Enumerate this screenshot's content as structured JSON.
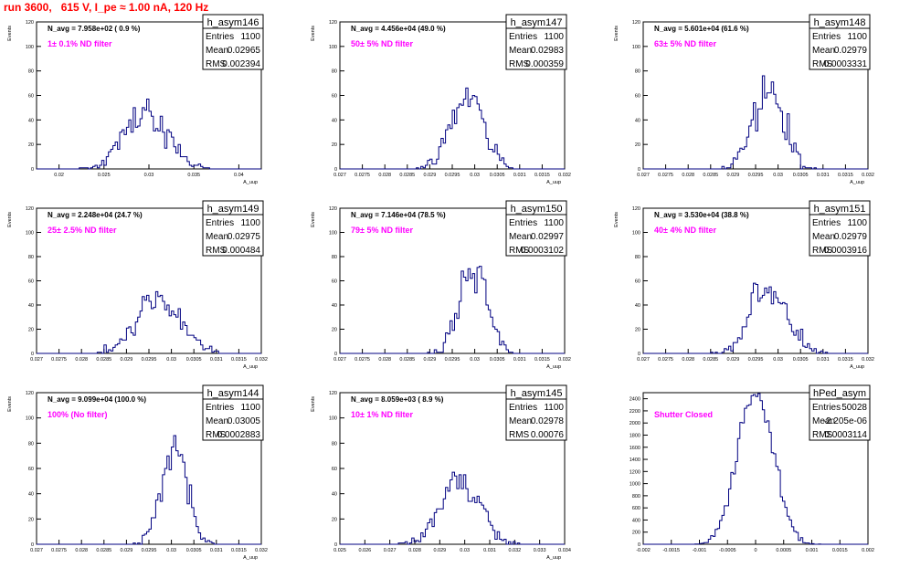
{
  "page": {
    "title": "run 3600,   615 V, I_pe ≈ 1.00 nA, 120 Hz"
  },
  "colors": {
    "histogram": "#000080",
    "annotation": "#ff00ff",
    "title": "#ff0000"
  },
  "chart_data": [
    {
      "type": "histogram",
      "name": "h_asym146",
      "header": "N_avg = 7.958e+02 ( 0.9 %)",
      "annotation": "1± 0.1% ND filter",
      "stats": {
        "Entries": "1100",
        "Mean": "0.02965",
        "RMS": "0.002394"
      },
      "ylabel": "Events",
      "xlabel": "A_uup",
      "xlim": [
        0.0175,
        0.0425
      ],
      "ylim": [
        0,
        120
      ],
      "xticks": [
        0.02,
        0.025,
        0.03,
        0.035,
        0.04
      ],
      "xtick_labels": [
        "0.02",
        "0.025",
        "0.03",
        "0.035",
        "0.04"
      ],
      "yticks": [
        0,
        20,
        40,
        60,
        80,
        100,
        120
      ],
      "mean": 0.02965,
      "rms": 0.002394,
      "entries": 1100
    },
    {
      "type": "histogram",
      "name": "h_asym147",
      "header": "N_avg = 4.456e+04 (49.0 %)",
      "annotation": "50± 5% ND filter",
      "stats": {
        "Entries": "1100",
        "Mean": "0.02983",
        "RMS": "0.000359"
      },
      "ylabel": "Events",
      "xlabel": "A_uup",
      "xlim": [
        0.027,
        0.032
      ],
      "ylim": [
        0,
        120
      ],
      "xticks": [
        0.027,
        0.0275,
        0.028,
        0.0285,
        0.029,
        0.0295,
        0.03,
        0.0305,
        0.031,
        0.0315,
        0.032
      ],
      "xtick_labels": [
        "0.027",
        "0.0275",
        "0.028",
        "0.0285",
        "0.029",
        "0.0295",
        "0.03",
        "0.0305",
        "0.031",
        "0.0315",
        "0.032"
      ],
      "yticks": [
        0,
        20,
        40,
        60,
        80,
        100,
        120
      ],
      "mean": 0.02983,
      "rms": 0.000359,
      "entries": 1100
    },
    {
      "type": "histogram",
      "name": "h_asym148",
      "header": "N_avg = 5.601e+04 (61.6 %)",
      "annotation": "63± 5% ND filter",
      "stats": {
        "Entries": "1100",
        "Mean": "0.02979",
        "RMS": "0.0003331"
      },
      "ylabel": "Events",
      "xlabel": "A_uup",
      "xlim": [
        0.027,
        0.032
      ],
      "ylim": [
        0,
        120
      ],
      "xticks": [
        0.027,
        0.0275,
        0.028,
        0.0285,
        0.029,
        0.0295,
        0.03,
        0.0305,
        0.031,
        0.0315,
        0.032
      ],
      "xtick_labels": [
        "0.027",
        "0.0275",
        "0.028",
        "0.0285",
        "0.029",
        "0.0295",
        "0.03",
        "0.0305",
        "0.031",
        "0.0315",
        "0.032"
      ],
      "yticks": [
        0,
        20,
        40,
        60,
        80,
        100,
        120
      ],
      "mean": 0.02979,
      "rms": 0.0003331,
      "entries": 1100
    },
    {
      "type": "histogram",
      "name": "h_asym149",
      "header": "N_avg = 2.248e+04 (24.7 %)",
      "annotation": "25± 2.5% ND filter",
      "stats": {
        "Entries": "1100",
        "Mean": "0.02975",
        "RMS": "0.000484"
      },
      "ylabel": "Events",
      "xlabel": "A_uup",
      "xlim": [
        0.027,
        0.032
      ],
      "ylim": [
        0,
        120
      ],
      "xticks": [
        0.027,
        0.0275,
        0.028,
        0.0285,
        0.029,
        0.0295,
        0.03,
        0.0305,
        0.031,
        0.0315,
        0.032
      ],
      "xtick_labels": [
        "0.027",
        "0.0275",
        "0.028",
        "0.0285",
        "0.029",
        "0.0295",
        "0.03",
        "0.0305",
        "0.031",
        "0.0315",
        "0.032"
      ],
      "yticks": [
        0,
        20,
        40,
        60,
        80,
        100,
        120
      ],
      "mean": 0.02975,
      "rms": 0.000484,
      "entries": 1100
    },
    {
      "type": "histogram",
      "name": "h_asym150",
      "header": "N_avg = 7.146e+04 (78.5 %)",
      "annotation": "79± 5% ND filter",
      "stats": {
        "Entries": "1100",
        "Mean": "0.02997",
        "RMS": "0.0003102"
      },
      "ylabel": "Events",
      "xlabel": "A_uup",
      "xlim": [
        0.027,
        0.032
      ],
      "ylim": [
        0,
        120
      ],
      "xticks": [
        0.027,
        0.0275,
        0.028,
        0.0285,
        0.029,
        0.0295,
        0.03,
        0.0305,
        0.031,
        0.0315,
        0.032
      ],
      "xtick_labels": [
        "0.027",
        "0.0275",
        "0.028",
        "0.0285",
        "0.029",
        "0.0295",
        "0.03",
        "0.0305",
        "0.031",
        "0.0315",
        "0.032"
      ],
      "yticks": [
        0,
        20,
        40,
        60,
        80,
        100,
        120
      ],
      "mean": 0.02997,
      "rms": 0.0003102,
      "entries": 1100
    },
    {
      "type": "histogram",
      "name": "h_asym151",
      "header": "N_avg = 3.530e+04 (38.8 %)",
      "annotation": "40± 4% ND filter",
      "stats": {
        "Entries": "1100",
        "Mean": "0.02979",
        "RMS": "0.0003916"
      },
      "ylabel": "Events",
      "xlabel": "A_uup",
      "xlim": [
        0.027,
        0.032
      ],
      "ylim": [
        0,
        120
      ],
      "xticks": [
        0.027,
        0.0275,
        0.028,
        0.0285,
        0.029,
        0.0295,
        0.03,
        0.0305,
        0.031,
        0.0315,
        0.032
      ],
      "xtick_labels": [
        "0.027",
        "0.0275",
        "0.028",
        "0.0285",
        "0.029",
        "0.0295",
        "0.03",
        "0.0305",
        "0.031",
        "0.0315",
        "0.032"
      ],
      "yticks": [
        0,
        20,
        40,
        60,
        80,
        100,
        120
      ],
      "mean": 0.02979,
      "rms": 0.0003916,
      "entries": 1100
    },
    {
      "type": "histogram",
      "name": "h_asym144",
      "header": "N_avg = 9.099e+04 (100.0 %)",
      "annotation": "100% (No filter)",
      "stats": {
        "Entries": "1100",
        "Mean": "0.03005",
        "RMS": "0.0002883"
      },
      "ylabel": "Events",
      "xlabel": "A_uup",
      "xlim": [
        0.027,
        0.032
      ],
      "ylim": [
        0,
        120
      ],
      "xticks": [
        0.027,
        0.0275,
        0.028,
        0.0285,
        0.029,
        0.0295,
        0.03,
        0.0305,
        0.031,
        0.0315,
        0.032
      ],
      "xtick_labels": [
        "0.027",
        "0.0275",
        "0.028",
        "0.0285",
        "0.029",
        "0.0295",
        "0.03",
        "0.0305",
        "0.031",
        "0.0315",
        "0.032"
      ],
      "yticks": [
        0,
        20,
        40,
        60,
        80,
        100,
        120
      ],
      "mean": 0.03005,
      "rms": 0.0002883,
      "entries": 1100
    },
    {
      "type": "histogram",
      "name": "h_asym145",
      "header": "N_avg = 8.059e+03 ( 8.9 %)",
      "annotation": "10± 1% ND filter",
      "stats": {
        "Entries": "1100",
        "Mean": "0.02978",
        "RMS": "0.00076"
      },
      "ylabel": "Events",
      "xlabel": "A_uup",
      "xlim": [
        0.025,
        0.034
      ],
      "ylim": [
        0,
        120
      ],
      "xticks": [
        0.025,
        0.026,
        0.027,
        0.028,
        0.029,
        0.03,
        0.031,
        0.032,
        0.033,
        0.034
      ],
      "xtick_labels": [
        "0.025",
        "0.026",
        "0.027",
        "0.028",
        "0.029",
        "0.03",
        "0.031",
        "0.032",
        "0.033",
        "0.034"
      ],
      "yticks": [
        0,
        20,
        40,
        60,
        80,
        100,
        120
      ],
      "mean": 0.02978,
      "rms": 0.00076,
      "entries": 1100
    },
    {
      "type": "histogram",
      "name": "hPed_asym",
      "header": "",
      "annotation": "Shutter Closed",
      "stats": {
        "Entries": "50028",
        "Mean": "-2.205e-06",
        "RMS": "0.0003114"
      },
      "ylabel": "",
      "xlabel": "",
      "xlim": [
        -0.002,
        0.002
      ],
      "ylim": [
        0,
        2500
      ],
      "xticks": [
        -0.002,
        -0.0015,
        -0.001,
        -0.0005,
        0,
        0.0005,
        0.001,
        0.0015,
        0.002
      ],
      "xtick_labels": [
        "-0.002",
        "-0.0015",
        "-0.001",
        "-0.0005",
        "0",
        "0.0005",
        "0.001",
        "0.0015",
        "0.002"
      ],
      "yticks": [
        0,
        200,
        400,
        600,
        800,
        1000,
        1200,
        1400,
        1600,
        1800,
        2000,
        2200,
        2400
      ],
      "mean": -2.205e-06,
      "rms": 0.0003114,
      "entries": 50028
    }
  ]
}
